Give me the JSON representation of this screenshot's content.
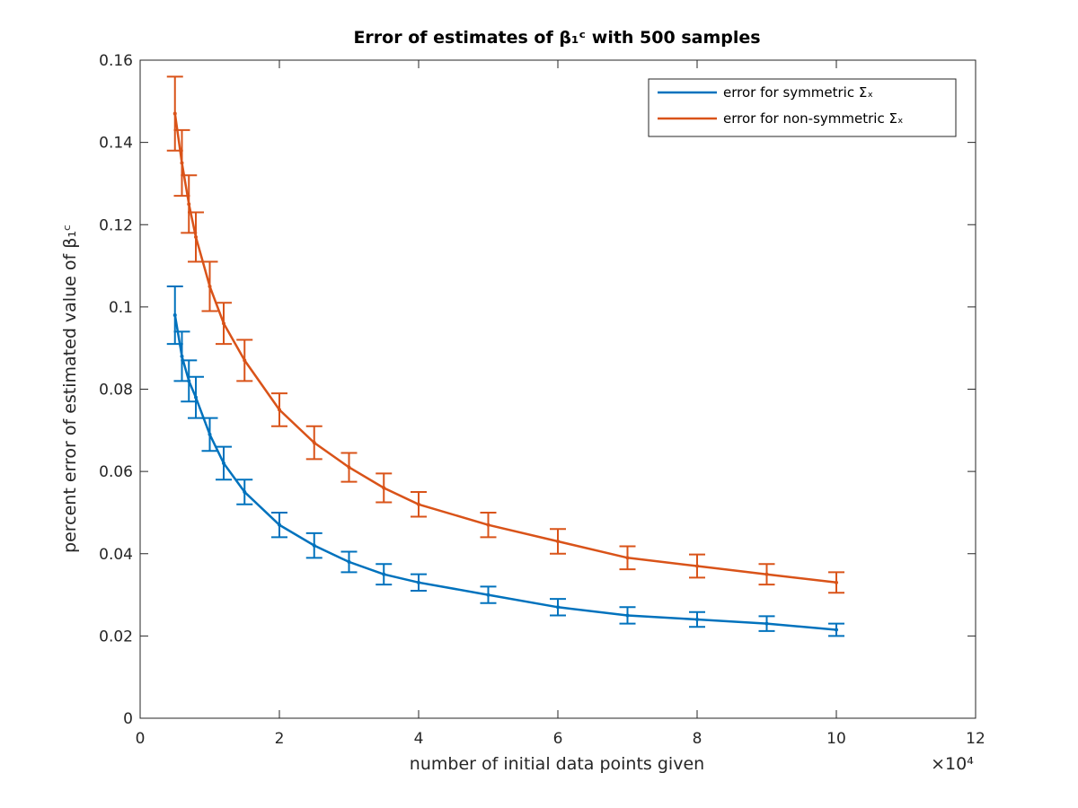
{
  "chart_data": {
    "type": "line",
    "title": "Error of estimates of β₁ᶜ with 500 samples",
    "xlabel": "number of initial data points given",
    "ylabel": "percent error of estimated value of β₁ᶜ",
    "x_multiplier_label": "×10⁴",
    "xlim": [
      0,
      12
    ],
    "ylim": [
      0,
      0.16
    ],
    "x_ticks": [
      "0",
      "2",
      "4",
      "6",
      "8",
      "10",
      "12"
    ],
    "y_ticks": [
      "0",
      "0.02",
      "0.04",
      "0.06",
      "0.08",
      "0.1",
      "0.12",
      "0.14",
      "0.16"
    ],
    "grid": false,
    "legend_position": "top-right",
    "error_bars": true,
    "series": [
      {
        "name": "error for symmetric Σₓ",
        "color": "#0072BD",
        "x": [
          0.5,
          0.6,
          0.7,
          0.8,
          1.0,
          1.2,
          1.5,
          2.0,
          2.5,
          3.0,
          3.5,
          4.0,
          5.0,
          6.0,
          7.0,
          8.0,
          9.0,
          10.0
        ],
        "y": [
          0.098,
          0.088,
          0.082,
          0.078,
          0.069,
          0.062,
          0.055,
          0.047,
          0.042,
          0.038,
          0.035,
          0.033,
          0.03,
          0.027,
          0.025,
          0.024,
          0.023,
          0.0215
        ],
        "err": [
          0.007,
          0.006,
          0.005,
          0.005,
          0.004,
          0.004,
          0.003,
          0.003,
          0.003,
          0.0025,
          0.0025,
          0.002,
          0.002,
          0.002,
          0.002,
          0.0018,
          0.0018,
          0.0015
        ]
      },
      {
        "name": "error for non-symmetric Σₓ",
        "color": "#D95319",
        "x": [
          0.5,
          0.6,
          0.7,
          0.8,
          1.0,
          1.2,
          1.5,
          2.0,
          2.5,
          3.0,
          3.5,
          4.0,
          5.0,
          6.0,
          7.0,
          8.0,
          9.0,
          10.0
        ],
        "y": [
          0.147,
          0.135,
          0.125,
          0.117,
          0.105,
          0.096,
          0.087,
          0.075,
          0.067,
          0.061,
          0.056,
          0.052,
          0.047,
          0.043,
          0.039,
          0.037,
          0.035,
          0.033
        ],
        "err": [
          0.009,
          0.008,
          0.007,
          0.006,
          0.006,
          0.005,
          0.005,
          0.004,
          0.004,
          0.0035,
          0.0035,
          0.003,
          0.003,
          0.003,
          0.0028,
          0.0028,
          0.0025,
          0.0025
        ]
      }
    ]
  }
}
